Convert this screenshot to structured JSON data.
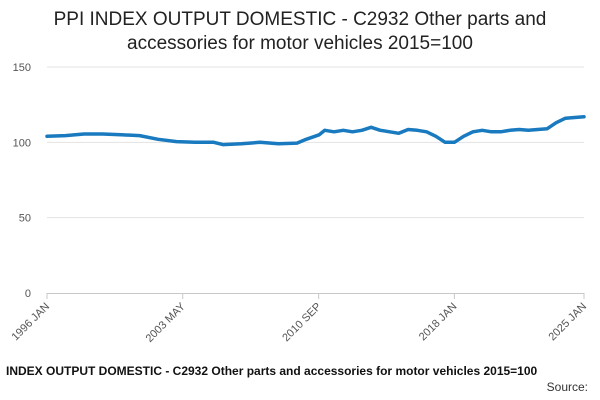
{
  "chart_data": {
    "type": "line",
    "title_lines": [
      "PPI INDEX OUTPUT DOMESTIC - C2932 Other parts and",
      "accessories for motor vehicles 2015=100"
    ],
    "y_ticks": [
      "0",
      "50",
      "100",
      "150"
    ],
    "ylim": [
      0,
      150
    ],
    "x_tick_labels": [
      "1996 JAN",
      "2003 MAY",
      "2010 SEP",
      "2018 JAN",
      "2025 JAN"
    ],
    "x_tick_positions": [
      1996.0,
      2003.33,
      2010.67,
      2018.0,
      2025.0
    ],
    "xlim": [
      1996.0,
      2025.0
    ],
    "grid": true,
    "series": [
      {
        "color": "#1a7abf",
        "points": [
          [
            1996.0,
            104
          ],
          [
            1997.0,
            104.5
          ],
          [
            1998.0,
            105.5
          ],
          [
            1999.0,
            105.5
          ],
          [
            2000.0,
            105
          ],
          [
            2001.0,
            104.5
          ],
          [
            2002.0,
            102
          ],
          [
            2003.0,
            100.5
          ],
          [
            2004.0,
            100
          ],
          [
            2005.0,
            100
          ],
          [
            2005.5,
            98.5
          ],
          [
            2006.5,
            99
          ],
          [
            2007.5,
            100
          ],
          [
            2008.5,
            99
          ],
          [
            2009.5,
            99.5
          ],
          [
            2010.0,
            102
          ],
          [
            2010.7,
            105
          ],
          [
            2011.0,
            108
          ],
          [
            2011.5,
            107
          ],
          [
            2012.0,
            108
          ],
          [
            2012.5,
            107
          ],
          [
            2013.0,
            108
          ],
          [
            2013.5,
            110
          ],
          [
            2014.0,
            108
          ],
          [
            2014.5,
            107
          ],
          [
            2015.0,
            106
          ],
          [
            2015.5,
            108.5
          ],
          [
            2016.0,
            108
          ],
          [
            2016.5,
            107
          ],
          [
            2017.0,
            104
          ],
          [
            2017.5,
            100
          ],
          [
            2018.0,
            100
          ],
          [
            2018.5,
            104
          ],
          [
            2019.0,
            107
          ],
          [
            2019.5,
            108
          ],
          [
            2020.0,
            107
          ],
          [
            2020.5,
            107
          ],
          [
            2021.0,
            108
          ],
          [
            2021.5,
            108.5
          ],
          [
            2022.0,
            108
          ],
          [
            2023.0,
            109
          ],
          [
            2023.5,
            113
          ],
          [
            2024.0,
            116
          ],
          [
            2024.5,
            116.5
          ],
          [
            2025.0,
            117
          ]
        ]
      }
    ]
  },
  "footer": {
    "caption": "INDEX OUTPUT DOMESTIC - C2932 Other parts and accessories for motor vehicles 2015=100",
    "source_label": "Source:"
  }
}
